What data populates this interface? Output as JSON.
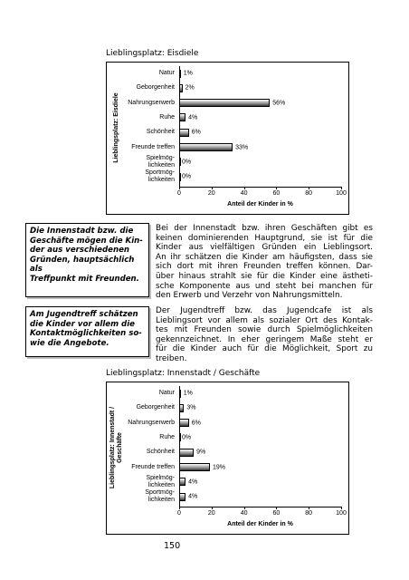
{
  "chart_data": [
    {
      "type": "bar",
      "orientation": "horizontal",
      "title": "Lieblingsplatz: Eisdiele",
      "ylabel": "Lieblingsplatz: Eisdiele",
      "xlabel": "Anteil der Kinder in %",
      "categories": [
        "Natur",
        "Geborgenheit",
        "Nahrungserwerb",
        "Ruhe",
        "Schönheit",
        "Freunde treffen",
        "Spielmög-\nlichkeiten",
        "Sportmög-\nlichkeiten"
      ],
      "values": [
        1,
        2,
        56,
        4,
        6,
        33,
        0,
        0
      ],
      "value_labels": [
        "1%",
        "2%",
        "56%",
        "4%",
        "6%",
        "33%",
        "0%",
        "0%"
      ],
      "xlim": [
        0,
        100
      ],
      "xticks": [
        0,
        20,
        40,
        60,
        80,
        100
      ],
      "color": "#7a7a7a"
    },
    {
      "type": "bar",
      "orientation": "horizontal",
      "title": "Lieblingsplatz: Innenstadt / Geschäfte",
      "ylabel": "Lieblingsplatz: Innenstadt /\nGeschäfte",
      "xlabel": "Anteil der Kinder in %",
      "categories": [
        "Natur",
        "Geborgenheit",
        "Nahrungserwerb",
        "Ruhe",
        "Schönheit",
        "Freunde treffen",
        "Spielmög-\nlichkeiten",
        "Sportmög-\nlichkeiten"
      ],
      "values": [
        1,
        3,
        6,
        0,
        9,
        19,
        4,
        4
      ],
      "value_labels": [
        "1%",
        "3%",
        "6%",
        "0%",
        "9%",
        "19%",
        "4%",
        "4%"
      ],
      "xlim": [
        0,
        100
      ],
      "xticks": [
        0,
        20,
        40,
        60,
        80,
        100
      ],
      "color": "#7a7a7a"
    }
  ],
  "sidebar": [
    {
      "lines": [
        "Die Innenstadt bzw. die",
        "Geschäfte mögen die Kin-",
        "der aus verschiedenen",
        "Gründen, hauptsächlich als",
        "Treffpunkt mit Freunden."
      ]
    },
    {
      "lines": [
        "Am Jugendtreff schätzen",
        "die Kinder vor allem die",
        "Kontaktmöglichkeiten so-",
        "wie die Angebote."
      ]
    }
  ],
  "paragraphs": [
    {
      "lines": [
        "Bei der Innenstadt bzw. ihren Geschäften gibt es",
        "keinen dominierenden Hauptgrund, sie ist für die",
        "Kinder aus vielfältigen Gründen ein Lieblingsort.",
        "An ihr schätzen die Kinder am häufigsten, dass sie",
        "sich dort mit ihren Freunden treffen können. Dar-",
        "über hinaus strahlt sie für die Kinder eine ästheti-",
        "sche Komponente aus und steht bei manchen für",
        "den Erwerb und Verzehr von Nahrungsmitteln."
      ]
    },
    {
      "lines": [
        "Der Jugendtreff bzw. das Jugendcafe ist als",
        "Lieblingsort vor allem als sozialer Ort des Kontak-",
        "tes mit Freunden sowie durch Spielmöglichkeiten",
        "gekennzeichnet. In eher geringem Maße steht er",
        "für die Kinder auch für die Möglichkeit, Sport zu",
        "treiben."
      ]
    }
  ],
  "page_number": 150
}
